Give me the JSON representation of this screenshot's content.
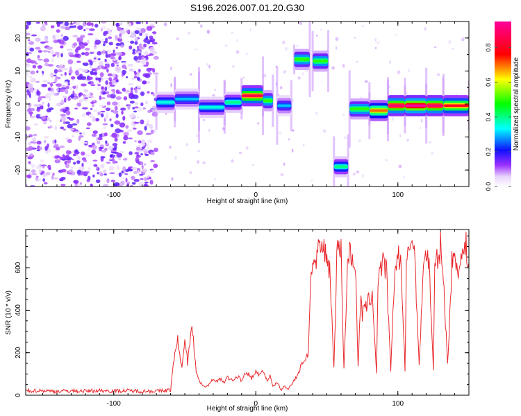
{
  "title": "S196.2026.007.01.20.G30",
  "colors": {
    "snr_line": "#e8262a",
    "axis": "#000000",
    "background": "#ffffff"
  },
  "chart_data": [
    {
      "type": "heatmap",
      "name": "spectrogram",
      "xlabel": "Height of straight line (km)",
      "ylabel": "Frequency (Hz)",
      "xlim": [
        -162,
        150
      ],
      "ylim": [
        -25,
        25
      ],
      "x_ticks": [
        -100,
        0,
        100
      ],
      "y_ticks": [
        -20,
        -10,
        0,
        10,
        20
      ],
      "x_tick_labels": [
        "-100",
        "0",
        "100"
      ],
      "y_tick_labels": [
        "-20",
        "-10",
        "0",
        "10",
        "20"
      ],
      "colorbar": {
        "label": "Normalized spectral amplitude",
        "range": [
          0,
          0.95
        ],
        "ticks": [
          0.0,
          0.2,
          0.4,
          0.6,
          0.8
        ],
        "tick_labels": [
          "0.0",
          "0.2",
          "0.4",
          "0.6",
          "0.8"
        ],
        "stops": [
          "#f2e6fb",
          "#8a2be2",
          "#0000ff",
          "#00ffff",
          "#00ff00",
          "#ffff00",
          "#ff0000",
          "#ff00aa"
        ]
      },
      "segments": [
        {
          "x0": -70,
          "x1": -57,
          "freq": 0.5,
          "amp": 0.35
        },
        {
          "x0": -57,
          "x1": -40,
          "freq": 1.5,
          "amp": 0.3
        },
        {
          "x0": -40,
          "x1": -22,
          "freq": -1.0,
          "amp": 0.35
        },
        {
          "x0": -22,
          "x1": -10,
          "freq": 0.5,
          "amp": 0.4
        },
        {
          "x0": -10,
          "x1": 5,
          "freq": 2.5,
          "amp": 0.85
        },
        {
          "x0": 5,
          "x1": 12,
          "freq": 1.0,
          "amp": 0.5
        },
        {
          "x0": 15,
          "x1": 25,
          "freq": -0.5,
          "amp": 0.3
        },
        {
          "x0": 27,
          "x1": 38,
          "freq": 13.5,
          "amp": 0.5
        },
        {
          "x0": 40,
          "x1": 51,
          "freq": 13.0,
          "amp": 0.5
        },
        {
          "x0": 55,
          "x1": 65,
          "freq": -19.0,
          "amp": 0.4
        },
        {
          "x0": 66,
          "x1": 80,
          "freq": -1.5,
          "amp": 0.5
        },
        {
          "x0": 80,
          "x1": 93,
          "freq": -2.0,
          "amp": 0.7
        },
        {
          "x0": 93,
          "x1": 105,
          "freq": -0.5,
          "amp": 0.9
        },
        {
          "x0": 105,
          "x1": 120,
          "freq": -0.5,
          "amp": 0.95
        },
        {
          "x0": 120,
          "x1": 132,
          "freq": -0.5,
          "amp": 0.9
        },
        {
          "x0": 132,
          "x1": 150,
          "freq": -0.5,
          "amp": 0.8
        }
      ]
    },
    {
      "type": "line",
      "name": "snr",
      "xlabel": "Height of straight line (km)",
      "ylabel": "SNR (10 * v/v)",
      "xlim": [
        -162,
        150
      ],
      "ylim": [
        0,
        780
      ],
      "x_ticks": [
        -100,
        0,
        100
      ],
      "y_ticks": [
        0,
        200,
        400,
        600
      ],
      "x_tick_labels": [
        "-100",
        "0",
        "100"
      ],
      "y_tick_labels": [
        "0",
        "200",
        "400",
        "600"
      ],
      "series": [
        {
          "name": "SNR",
          "x": [
            -162,
            -150,
            -140,
            -130,
            -120,
            -110,
            -100,
            -90,
            -80,
            -70,
            -65,
            -60,
            -58,
            -55,
            -52,
            -50,
            -48,
            -45,
            -42,
            -40,
            -38,
            -35,
            -32,
            -30,
            -28,
            -25,
            -22,
            -20,
            -18,
            -15,
            -12,
            -10,
            -8,
            -5,
            -3,
            0,
            3,
            5,
            8,
            10,
            12,
            15,
            18,
            20,
            22,
            25,
            28,
            30,
            32,
            35,
            37,
            38,
            40,
            42,
            45,
            48,
            50,
            52,
            55,
            57,
            58,
            60,
            62,
            65,
            68,
            70,
            72,
            74,
            75,
            78,
            80,
            82,
            85,
            86,
            88,
            90,
            92,
            95,
            98,
            100,
            102,
            105,
            106,
            108,
            110,
            112,
            115,
            118,
            120,
            122,
            125,
            126,
            128,
            130,
            132,
            135,
            138,
            140,
            142,
            145,
            148,
            150
          ],
          "y": [
            20,
            22,
            18,
            21,
            19,
            22,
            20,
            21,
            19,
            20,
            21,
            25,
            150,
            260,
            120,
            280,
            150,
            350,
            110,
            70,
            50,
            40,
            55,
            80,
            65,
            75,
            60,
            85,
            70,
            75,
            90,
            65,
            95,
            100,
            80,
            110,
            95,
            115,
            70,
            90,
            40,
            60,
            25,
            40,
            30,
            50,
            80,
            100,
            150,
            170,
            200,
            450,
            650,
            600,
            700,
            680,
            650,
            600,
            130,
            650,
            700,
            680,
            120,
            680,
            650,
            620,
            140,
            460,
            380,
            420,
            450,
            480,
            100,
            550,
            600,
            620,
            580,
            110,
            620,
            650,
            640,
            120,
            600,
            680,
            760,
            650,
            130,
            640,
            660,
            620,
            110,
            600,
            640,
            700,
            560,
            140,
            620,
            650,
            600,
            650,
            700,
            620
          ]
        }
      ]
    }
  ]
}
